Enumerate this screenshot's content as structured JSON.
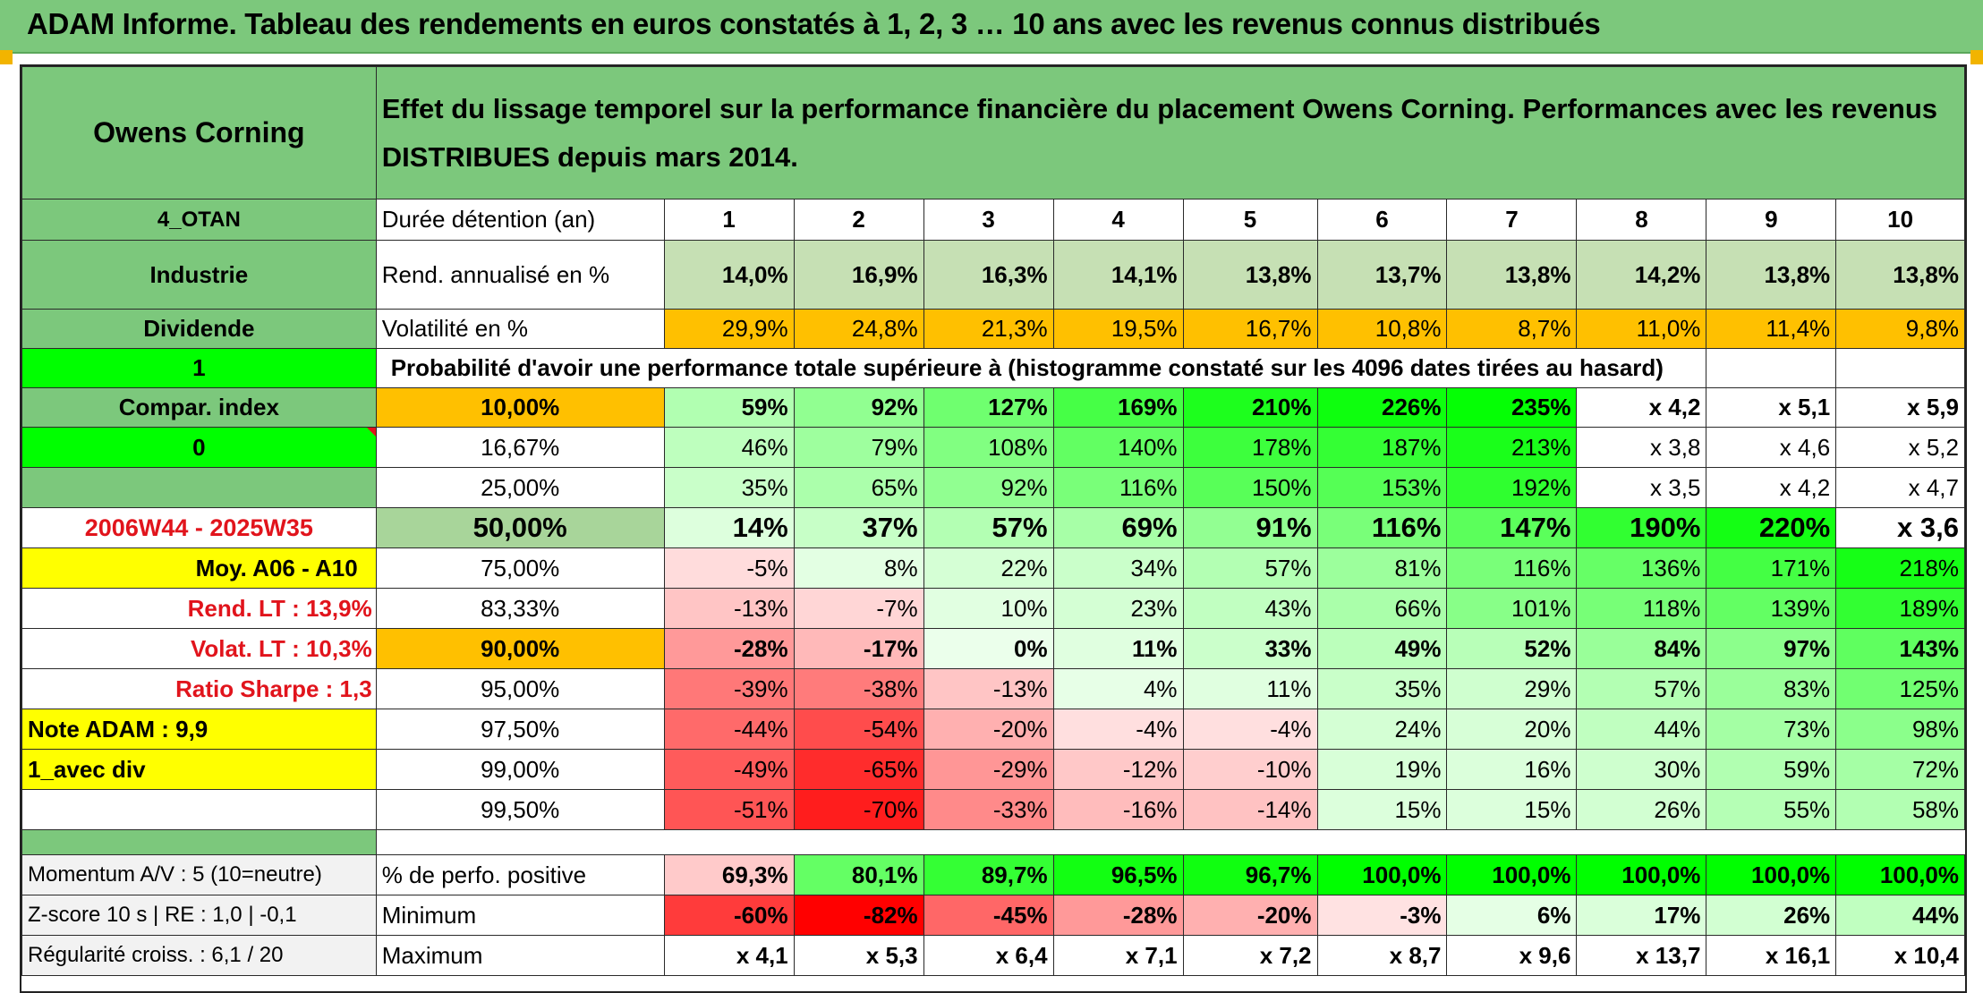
{
  "header": {
    "title": "ADAM Informe. Tableau des rendements en euros constatés à 1, 2, 3 … 10 ans avec les revenus connus distribués"
  },
  "left_panel": {
    "company": "Owens Corning",
    "code": "4_OTAN",
    "sector": "Industrie",
    "dividend_label": "Dividende",
    "dividend_value": "1",
    "compar_label": "Compar. index",
    "compar_value": "0",
    "period": "2006W44 - 2025W35",
    "moy": "Moy. A06 - A10",
    "rend_lt": "Rend. LT :   13,9%",
    "volat_lt": "Volat. LT :   10,3%",
    "sharpe": "Ratio Sharpe :    1,3",
    "note": "Note ADAM : 9,9",
    "avec_div": "1_avec div",
    "momentum": "Momentum A/V : 5 (10=neutre)",
    "zscore": "Z-score 10 s | RE : 1,0 | -0,1",
    "regularite": "Régularité croiss. : 6,1 / 20"
  },
  "description": {
    "line1": "Effet du lissage temporel sur la performance financière du placement Owens Corning. Performances avec les revenus",
    "line2": "DISTRIBUES depuis mars 2014."
  },
  "table": {
    "duration_label": "Durée détention (an)",
    "years": [
      "1",
      "2",
      "3",
      "4",
      "5",
      "6",
      "7",
      "8",
      "9",
      "10"
    ],
    "rend_label": "Rend. annualisé en %",
    "rend": [
      "14,0%",
      "16,9%",
      "16,3%",
      "14,1%",
      "13,8%",
      "13,7%",
      "13,8%",
      "14,2%",
      "13,8%",
      "13,8%"
    ],
    "vol_label": "Volatilité en %",
    "vol": [
      "29,9%",
      "24,8%",
      "21,3%",
      "19,5%",
      "16,7%",
      "10,8%",
      "8,7%",
      "11,0%",
      "11,4%",
      "9,8%"
    ],
    "prob_title": "Probabilité d'avoir une performance totale supérieure à (histogramme constaté sur les 4096 dates tirées au hasard)",
    "quantile_rows": [
      {
        "label": "10,00%",
        "values": [
          "59%",
          "92%",
          "127%",
          "169%",
          "210%",
          "226%",
          "235%",
          "x 4,2",
          "x 5,1",
          "x 5,9"
        ]
      },
      {
        "label": "16,67%",
        "values": [
          "46%",
          "79%",
          "108%",
          "140%",
          "178%",
          "187%",
          "213%",
          "x 3,8",
          "x 4,6",
          "x 5,2"
        ]
      },
      {
        "label": "25,00%",
        "values": [
          "35%",
          "65%",
          "92%",
          "116%",
          "150%",
          "153%",
          "192%",
          "x 3,5",
          "x 4,2",
          "x 4,7"
        ]
      },
      {
        "label": "50,00%",
        "values": [
          "14%",
          "37%",
          "57%",
          "69%",
          "91%",
          "116%",
          "147%",
          "190%",
          "220%",
          "x 3,6"
        ]
      },
      {
        "label": "75,00%",
        "values": [
          "-5%",
          "8%",
          "22%",
          "34%",
          "57%",
          "81%",
          "116%",
          "136%",
          "171%",
          "218%"
        ]
      },
      {
        "label": "83,33%",
        "values": [
          "-13%",
          "-7%",
          "10%",
          "23%",
          "43%",
          "66%",
          "101%",
          "118%",
          "139%",
          "189%"
        ]
      },
      {
        "label": "90,00%",
        "values": [
          "-28%",
          "-17%",
          "0%",
          "11%",
          "33%",
          "49%",
          "52%",
          "84%",
          "97%",
          "143%"
        ]
      },
      {
        "label": "95,00%",
        "values": [
          "-39%",
          "-38%",
          "-13%",
          "4%",
          "11%",
          "35%",
          "29%",
          "57%",
          "83%",
          "125%"
        ]
      },
      {
        "label": "97,50%",
        "values": [
          "-44%",
          "-54%",
          "-20%",
          "-4%",
          "-4%",
          "24%",
          "20%",
          "44%",
          "73%",
          "98%"
        ]
      },
      {
        "label": "99,00%",
        "values": [
          "-49%",
          "-65%",
          "-29%",
          "-12%",
          "-10%",
          "19%",
          "16%",
          "30%",
          "59%",
          "72%"
        ]
      },
      {
        "label": "99,50%",
        "values": [
          "-51%",
          "-70%",
          "-33%",
          "-16%",
          "-14%",
          "15%",
          "15%",
          "26%",
          "55%",
          "58%"
        ]
      }
    ],
    "positive_label": "% de perfo. positive",
    "positive": [
      "69,3%",
      "80,1%",
      "89,7%",
      "96,5%",
      "96,7%",
      "100,0%",
      "100,0%",
      "100,0%",
      "100,0%",
      "100,0%"
    ],
    "min_label": "Minimum",
    "min": [
      "-60%",
      "-82%",
      "-45%",
      "-28%",
      "-20%",
      "-3%",
      "6%",
      "17%",
      "26%",
      "44%"
    ],
    "max_label": "Maximum",
    "max": [
      "x 4,1",
      "x 5,3",
      "x 6,4",
      "x 7,1",
      "x 7,2",
      "x 8,7",
      "x 9,6",
      "x 13,7",
      "x 16,1",
      "x 10,4"
    ]
  },
  "colors": {
    "header_green": "#7cc87c",
    "bright_green": "#00ff00",
    "orange": "#ffc000",
    "yellow": "#ffff00",
    "red_text": "#e1141c",
    "heat_red": "#ff0000"
  }
}
